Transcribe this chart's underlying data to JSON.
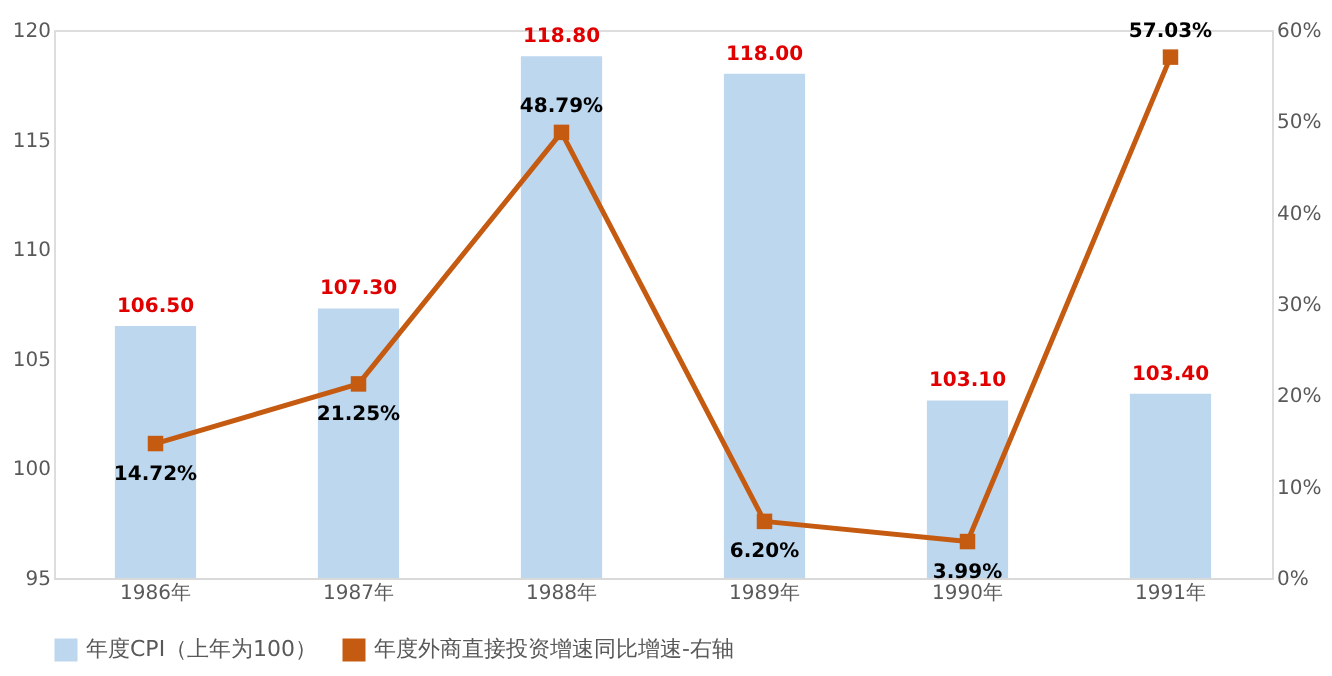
{
  "chart_data": {
    "type": "bar",
    "categories": [
      "1986年",
      "1987年",
      "1988年",
      "1989年",
      "1990年",
      "1991年"
    ],
    "series": [
      {
        "name": "年度CPI（上年为100）",
        "color": "#bdd7ee",
        "values": [
          106.5,
          107.3,
          118.8,
          118.0,
          103.1,
          103.4
        ],
        "value_labels": [
          "106.50",
          "107.30",
          "118.80",
          "118.00",
          "103.10",
          "103.40"
        ]
      },
      {
        "name": "年度外商直接投资增速同比增速-右轴",
        "type": "line",
        "axis": "y2",
        "color": "#c55a11",
        "values": [
          14.72,
          21.25,
          48.79,
          6.2,
          3.99,
          57.03
        ],
        "value_labels": [
          "14.72%",
          "21.25%",
          "48.79%",
          "6.20%",
          "3.99%",
          "57.03%"
        ]
      }
    ],
    "ylim": [
      95,
      120
    ],
    "yticks": [
      95,
      100,
      105,
      110,
      115,
      120
    ],
    "y2lim": [
      0,
      60
    ],
    "y2ticks": [
      {
        "value": 0,
        "label": "0%"
      },
      {
        "value": 10,
        "label": "10%"
      },
      {
        "value": 20,
        "label": "20%"
      },
      {
        "value": 30,
        "label": "30%"
      },
      {
        "value": 40,
        "label": "40%"
      },
      {
        "value": 50,
        "label": "50%"
      },
      {
        "value": 60,
        "label": "60%"
      }
    ],
    "grid": false,
    "legend": "bottom",
    "marker": "square",
    "line_style": "solid"
  }
}
